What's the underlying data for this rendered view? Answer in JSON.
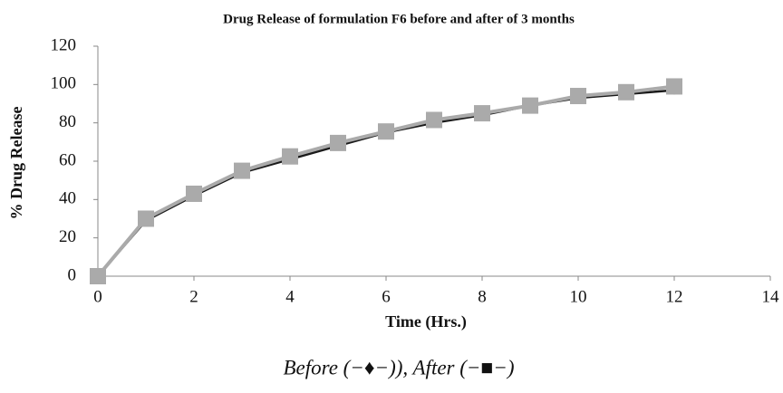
{
  "chart_data": {
    "type": "line",
    "title": "Drug Release of formulation  F6 before and after of 3 months",
    "xlabel": "Time (Hrs.)",
    "ylabel": "% Drug Release",
    "caption": "Before (−♦−)), After (−■−)",
    "x": [
      0,
      1,
      2,
      3,
      4,
      5,
      6,
      7,
      8,
      9,
      10,
      11,
      12
    ],
    "series": [
      {
        "color": "#1a1a1a",
        "marker": "diamond",
        "values": [
          0,
          29,
          42,
          54,
          61,
          68,
          75,
          80,
          84,
          89,
          93,
          95,
          97
        ]
      },
      {
        "color": "#aaaaaa",
        "marker": "square",
        "values": [
          0,
          30,
          43,
          55,
          62.5,
          69.5,
          75.5,
          81.5,
          85,
          89,
          94,
          96,
          99
        ]
      }
    ],
    "xlim": [
      0,
      14
    ],
    "xticks": [
      0,
      2,
      4,
      6,
      8,
      10,
      12,
      14
    ],
    "ylim": [
      0,
      120
    ],
    "yticks": [
      0,
      20,
      40,
      60,
      80,
      100,
      120
    ],
    "grid": false
  }
}
